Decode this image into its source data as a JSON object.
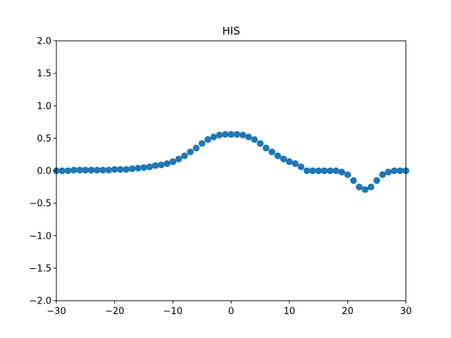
{
  "chart_data": {
    "type": "scatter",
    "title": "HIS",
    "xlabel": "",
    "ylabel": "",
    "xlim": [
      -30,
      30
    ],
    "ylim": [
      -2.0,
      2.0
    ],
    "x_ticks": [
      "−30",
      "−20",
      "−10",
      "0",
      "10",
      "20",
      "30"
    ],
    "x_tick_values": [
      -30,
      -20,
      -10,
      0,
      10,
      20,
      30
    ],
    "y_ticks": [
      "−2.0",
      "−1.5",
      "−1.0",
      "−0.5",
      "0.0",
      "0.5",
      "1.0",
      "1.5",
      "2.0"
    ],
    "y_tick_values": [
      -2.0,
      -1.5,
      -1.0,
      -0.5,
      0.0,
      0.5,
      1.0,
      1.5,
      2.0
    ],
    "grid": false,
    "marker_color": "#1f77b4",
    "series": [
      {
        "x": [
          -30,
          -29,
          -28,
          -27,
          -26,
          -25,
          -24,
          -23,
          -22,
          -21,
          -20,
          -19,
          -18,
          -17,
          -16,
          -15,
          -14,
          -13,
          -12,
          -11,
          -10,
          -9,
          -8,
          -7,
          -6,
          -5,
          -4,
          -3,
          -2,
          -1,
          0,
          1,
          2,
          3,
          4,
          5,
          6,
          7,
          8,
          9,
          10,
          11,
          12,
          13,
          14,
          15,
          16,
          17,
          18,
          19,
          20,
          21,
          22,
          23,
          24,
          25,
          26,
          27,
          28,
          29,
          30
        ],
        "y": [
          0.0,
          0.0,
          0.0,
          0.01,
          0.01,
          0.01,
          0.01,
          0.01,
          0.01,
          0.01,
          0.02,
          0.02,
          0.02,
          0.03,
          0.04,
          0.05,
          0.06,
          0.08,
          0.09,
          0.11,
          0.14,
          0.18,
          0.23,
          0.29,
          0.35,
          0.42,
          0.48,
          0.52,
          0.55,
          0.56,
          0.56,
          0.56,
          0.55,
          0.52,
          0.48,
          0.42,
          0.35,
          0.29,
          0.23,
          0.18,
          0.14,
          0.11,
          0.06,
          0.0,
          0.0,
          0.0,
          0.0,
          0.0,
          0.0,
          -0.02,
          -0.06,
          -0.15,
          -0.25,
          -0.29,
          -0.25,
          -0.15,
          -0.06,
          -0.02,
          0.0,
          0.0,
          0.0
        ]
      }
    ]
  }
}
